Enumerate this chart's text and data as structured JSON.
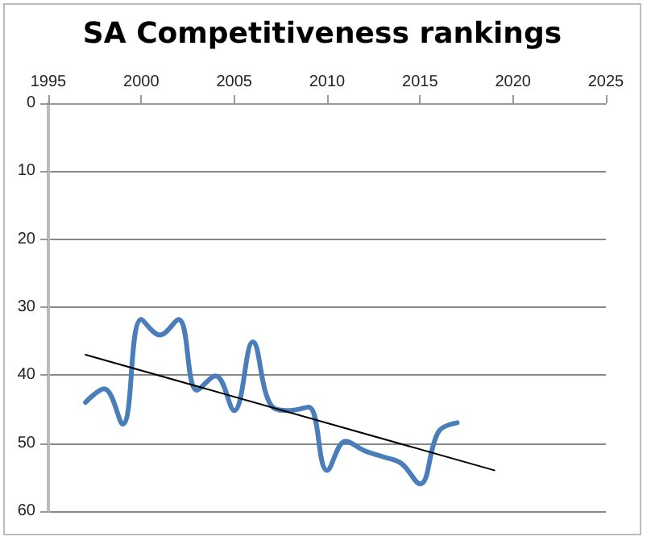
{
  "chart_data": {
    "type": "line",
    "title": "SA Competitiveness rankings",
    "x": [
      1997,
      1998,
      1999,
      2000,
      2001,
      2002,
      2003,
      2004,
      2005,
      2006,
      2007,
      2008,
      2009,
      2010,
      2011,
      2012,
      2013,
      2014,
      2015,
      2016,
      2017
    ],
    "series": [
      {
        "color": "#4a7ebb",
        "values": [
          44,
          42,
          47.2,
          31.8,
          34.1,
          31.8,
          42.2,
          40.1,
          45.2,
          35.1,
          44.5,
          45.2,
          44.7,
          54,
          49.7,
          51.1,
          52,
          53,
          56,
          48.3,
          47
        ]
      },
      {
        "color": "#000000",
        "x": [
          1997,
          2019
        ],
        "values": [
          37,
          54
        ]
      }
    ],
    "xlim": [
      1995,
      2025
    ],
    "xticks": [
      1995,
      2000,
      2005,
      2010,
      2015,
      2020,
      2025
    ],
    "ylim": [
      60,
      0
    ],
    "yticks": [
      0,
      10,
      20,
      30,
      40,
      50,
      60
    ],
    "grid": "y",
    "marker": "none",
    "line_style": "solid"
  }
}
